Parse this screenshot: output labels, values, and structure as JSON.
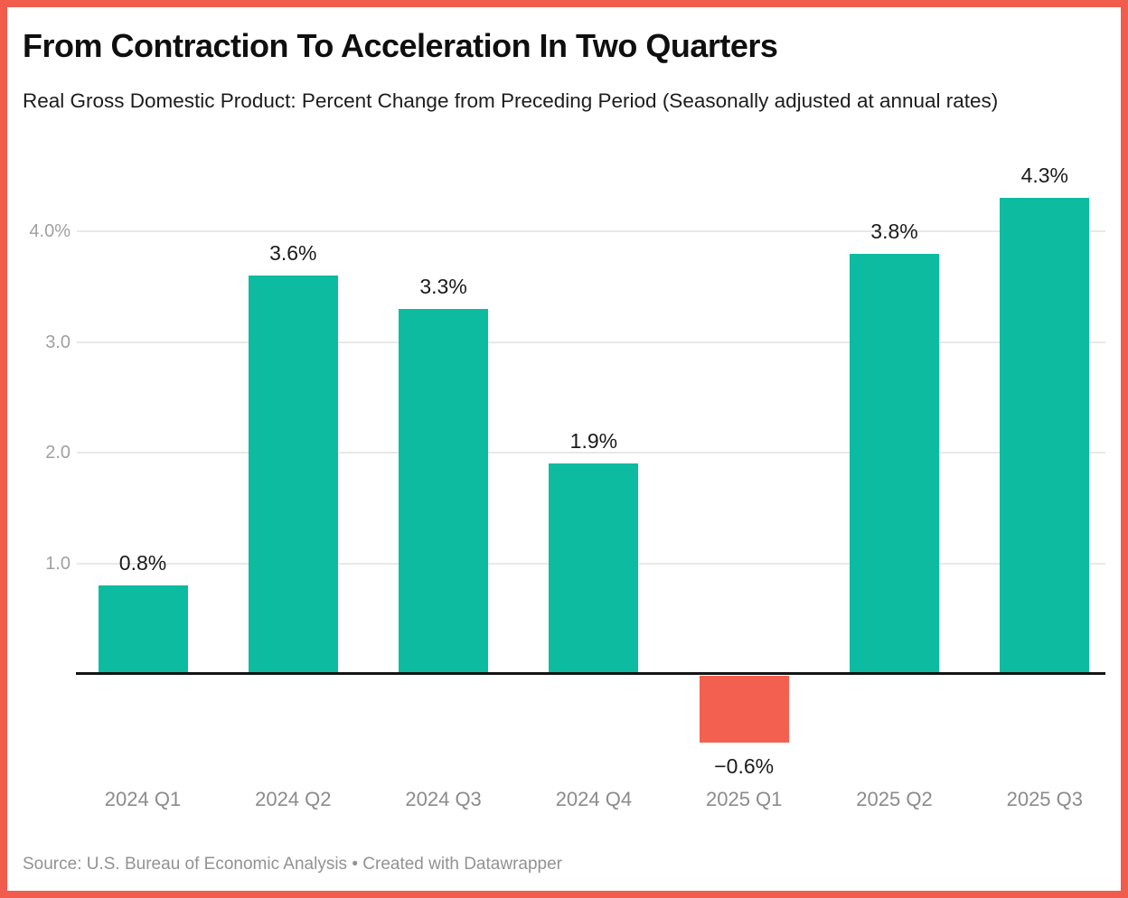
{
  "frame": {
    "border_color": "#f25c4d",
    "background": "#ffffff"
  },
  "header": {
    "title": "From Contraction To Acceleration In Two Quarters",
    "subtitle": "Real Gross Domestic Product: Percent Change from Preceding Period (Seasonally adjusted at annual rates)"
  },
  "footer": {
    "source": "Source: U.S. Bureau of Economic Analysis • Created with Datawrapper"
  },
  "chart_data": {
    "type": "bar",
    "title": "From Contraction To Acceleration In Two Quarters",
    "subtitle": "Real Gross Domestic Product: Percent Change from Preceding Period (Seasonally adjusted at annual rates)",
    "categories": [
      "2024 Q1",
      "2024 Q2",
      "2024 Q3",
      "2024 Q4",
      "2025 Q1",
      "2025 Q2",
      "2025 Q3"
    ],
    "values": [
      0.8,
      3.6,
      3.3,
      1.9,
      -0.6,
      3.8,
      4.3
    ],
    "value_labels": [
      "0.8%",
      "3.6%",
      "3.3%",
      "1.9%",
      "−0.6%",
      "3.8%",
      "4.3%"
    ],
    "positive_color": "#0dbba1",
    "negative_color": "#f4604f",
    "xlabel": "",
    "ylabel": "",
    "axis": {
      "yticks": [
        {
          "value": 1.0,
          "label": "1.0"
        },
        {
          "value": 2.0,
          "label": "2.0"
        },
        {
          "value": 3.0,
          "label": "3.0"
        },
        {
          "value": 4.0,
          "label": "4.0%"
        }
      ],
      "ylim": [
        -0.8,
        4.6
      ],
      "grid": true,
      "baseline_value": 0,
      "baseline_color": "#141414"
    },
    "legend": "none",
    "source": "Source: U.S. Bureau of Economic Analysis • Created with Datawrapper"
  }
}
